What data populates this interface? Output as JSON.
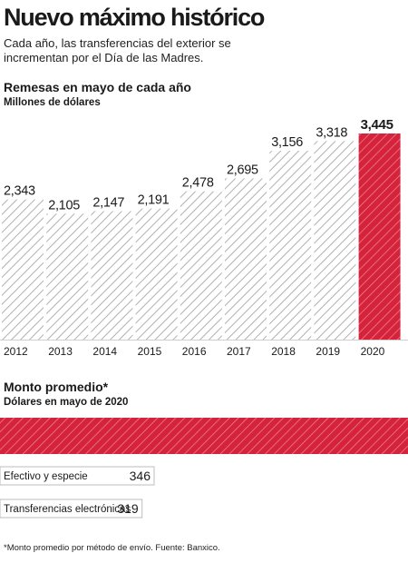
{
  "title": "Nuevo máximo histórico",
  "subtitle": "Cada año, las transferencias del exterior se incrementan por el Día de las Madres.",
  "colors": {
    "highlight": "#d6233c",
    "hatch": "#b0b0b0",
    "divider": "#cfcfcf"
  },
  "chart_data": [
    {
      "type": "bar",
      "title": "Remesas en mayo de cada año",
      "subtitle": "Millones de dólares",
      "categories": [
        "2012",
        "2013",
        "2014",
        "2015",
        "2016",
        "2017",
        "2018",
        "2019",
        "2020"
      ],
      "values": [
        2343,
        2105,
        2147,
        2191,
        2478,
        2695,
        3156,
        3318,
        3445
      ],
      "value_labels": [
        "2,343",
        "2,105",
        "2,147",
        "2,191",
        "2,478",
        "2,695",
        "3,156",
        "3,318",
        "3,445"
      ],
      "highlight_index": 8,
      "grid": false
    },
    {
      "type": "bar",
      "orientation": "horizontal",
      "title": "Monto promedio*",
      "subtitle": "Dólares en mayo de 2020",
      "categories": [
        "Efectivo y especie",
        "Transferencias electrónicas"
      ],
      "values": [
        346,
        319
      ],
      "value_labels": [
        "346",
        "319"
      ]
    }
  ],
  "footnote": "*Monto promedio por método de envío. Fuente: Banxico."
}
